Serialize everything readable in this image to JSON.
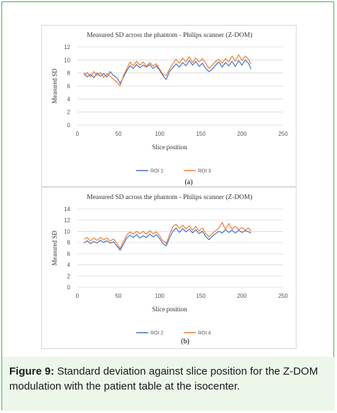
{
  "figure_caption": {
    "label": "Figure 9:",
    "text": " Standard deviation against slice position for the Z-DOM modulation with the patient table at the isocenter."
  },
  "subfigure_labels": [
    "(a)",
    "(b)"
  ],
  "chart_data": [
    {
      "type": "line",
      "title": "Measured SD across the phantom - Philips scanner (Z-DOM)",
      "xlabel": "Slice position",
      "ylabel": "Measured SD",
      "xlim": [
        0,
        250
      ],
      "ylim": [
        0,
        12
      ],
      "xticks": [
        0,
        50,
        100,
        150,
        200,
        250
      ],
      "yticks": [
        0,
        2,
        4,
        6,
        8,
        10,
        12
      ],
      "grid": "horizontal",
      "legend_position": "bottom",
      "series": [
        {
          "name": "ROI 1",
          "color": "#4472c4",
          "points": [
            [
              8,
              8.0
            ],
            [
              12,
              7.4
            ],
            [
              16,
              7.8
            ],
            [
              20,
              7.3
            ],
            [
              24,
              8.0
            ],
            [
              28,
              7.5
            ],
            [
              32,
              7.9
            ],
            [
              36,
              7.4
            ],
            [
              40,
              8.2
            ],
            [
              44,
              7.6
            ],
            [
              48,
              7.3
            ],
            [
              52,
              6.4
            ],
            [
              56,
              7.4
            ],
            [
              60,
              8.3
            ],
            [
              64,
              9.1
            ],
            [
              68,
              8.7
            ],
            [
              72,
              9.3
            ],
            [
              76,
              8.8
            ],
            [
              80,
              9.2
            ],
            [
              84,
              8.9
            ],
            [
              88,
              9.3
            ],
            [
              92,
              8.7
            ],
            [
              96,
              9.1
            ],
            [
              100,
              8.4
            ],
            [
              104,
              7.6
            ],
            [
              108,
              7.0
            ],
            [
              112,
              8.2
            ],
            [
              116,
              8.8
            ],
            [
              120,
              9.4
            ],
            [
              124,
              8.9
            ],
            [
              128,
              9.6
            ],
            [
              132,
              9.1
            ],
            [
              136,
              9.9
            ],
            [
              140,
              9.2
            ],
            [
              144,
              9.8
            ],
            [
              148,
              9.0
            ],
            [
              152,
              9.5
            ],
            [
              156,
              8.7
            ],
            [
              160,
              8.2
            ],
            [
              164,
              8.6
            ],
            [
              168,
              9.2
            ],
            [
              172,
              9.7
            ],
            [
              176,
              8.9
            ],
            [
              180,
              9.6
            ],
            [
              184,
              9.1
            ],
            [
              188,
              9.8
            ],
            [
              192,
              9.0
            ],
            [
              196,
              9.9
            ],
            [
              200,
              9.2
            ],
            [
              204,
              10.0
            ],
            [
              208,
              9.5
            ],
            [
              211,
              8.6
            ]
          ]
        },
        {
          "name": "ROI 3",
          "color": "#ed7d31",
          "points": [
            [
              8,
              7.6
            ],
            [
              12,
              8.1
            ],
            [
              16,
              7.4
            ],
            [
              20,
              8.2
            ],
            [
              24,
              7.6
            ],
            [
              28,
              8.1
            ],
            [
              32,
              7.3
            ],
            [
              36,
              7.9
            ],
            [
              40,
              7.5
            ],
            [
              44,
              7.0
            ],
            [
              48,
              6.6
            ],
            [
              52,
              6.0
            ],
            [
              56,
              7.6
            ],
            [
              60,
              8.6
            ],
            [
              64,
              9.7
            ],
            [
              68,
              9.1
            ],
            [
              72,
              9.8
            ],
            [
              76,
              9.2
            ],
            [
              80,
              9.7
            ],
            [
              84,
              9.0
            ],
            [
              88,
              9.6
            ],
            [
              92,
              9.1
            ],
            [
              96,
              9.4
            ],
            [
              100,
              8.6
            ],
            [
              104,
              7.8
            ],
            [
              108,
              7.6
            ],
            [
              112,
              8.6
            ],
            [
              116,
              9.4
            ],
            [
              120,
              10.1
            ],
            [
              124,
              9.5
            ],
            [
              128,
              10.3
            ],
            [
              132,
              9.7
            ],
            [
              136,
              10.5
            ],
            [
              140,
              9.6
            ],
            [
              144,
              10.3
            ],
            [
              148,
              9.7
            ],
            [
              152,
              10.2
            ],
            [
              156,
              9.5
            ],
            [
              160,
              8.7
            ],
            [
              164,
              9.2
            ],
            [
              168,
              9.8
            ],
            [
              172,
              10.1
            ],
            [
              176,
              9.5
            ],
            [
              180,
              10.2
            ],
            [
              184,
              9.7
            ],
            [
              188,
              10.6
            ],
            [
              192,
              9.8
            ],
            [
              196,
              10.8
            ],
            [
              200,
              9.9
            ],
            [
              204,
              10.6
            ],
            [
              208,
              10.1
            ],
            [
              211,
              9.4
            ]
          ]
        }
      ]
    },
    {
      "type": "line",
      "title": "Measured SD across the phantom - Philips scanner (Z-DOM)",
      "xlabel": "Slice position",
      "ylabel": "Measured SD",
      "xlim": [
        0,
        250
      ],
      "ylim": [
        0,
        14
      ],
      "xticks": [
        0,
        50,
        100,
        150,
        200,
        250
      ],
      "yticks": [
        0,
        2,
        4,
        6,
        8,
        10,
        12,
        14
      ],
      "grid": "horizontal",
      "legend_position": "bottom",
      "series": [
        {
          "name": "ROI 2",
          "color": "#4472c4",
          "points": [
            [
              8,
              7.9
            ],
            [
              12,
              8.3
            ],
            [
              16,
              7.8
            ],
            [
              20,
              8.2
            ],
            [
              24,
              7.9
            ],
            [
              28,
              8.4
            ],
            [
              32,
              8.0
            ],
            [
              36,
              8.3
            ],
            [
              40,
              7.9
            ],
            [
              44,
              8.1
            ],
            [
              48,
              7.4
            ],
            [
              52,
              6.6
            ],
            [
              56,
              7.7
            ],
            [
              60,
              8.8
            ],
            [
              64,
              9.3
            ],
            [
              68,
              8.9
            ],
            [
              72,
              9.4
            ],
            [
              76,
              8.8
            ],
            [
              80,
              9.2
            ],
            [
              84,
              8.9
            ],
            [
              88,
              9.5
            ],
            [
              92,
              9.0
            ],
            [
              96,
              9.4
            ],
            [
              100,
              8.7
            ],
            [
              104,
              7.8
            ],
            [
              108,
              7.4
            ],
            [
              112,
              8.8
            ],
            [
              116,
              10.0
            ],
            [
              120,
              10.6
            ],
            [
              124,
              9.8
            ],
            [
              128,
              10.5
            ],
            [
              132,
              9.9
            ],
            [
              136,
              10.4
            ],
            [
              140,
              9.7
            ],
            [
              144,
              10.3
            ],
            [
              148,
              9.6
            ],
            [
              152,
              10.0
            ],
            [
              156,
              9.1
            ],
            [
              160,
              8.5
            ],
            [
              164,
              9.1
            ],
            [
              168,
              9.6
            ],
            [
              172,
              10.0
            ],
            [
              176,
              9.7
            ],
            [
              180,
              10.3
            ],
            [
              184,
              9.8
            ],
            [
              188,
              10.2
            ],
            [
              192,
              9.7
            ],
            [
              196,
              10.2
            ],
            [
              200,
              9.8
            ],
            [
              204,
              10.1
            ],
            [
              208,
              9.9
            ],
            [
              211,
              9.7
            ]
          ]
        },
        {
          "name": "ROI 4",
          "color": "#ed7d31",
          "points": [
            [
              8,
              8.6
            ],
            [
              12,
              8.9
            ],
            [
              16,
              8.3
            ],
            [
              20,
              8.8
            ],
            [
              24,
              8.4
            ],
            [
              28,
              8.9
            ],
            [
              32,
              8.5
            ],
            [
              36,
              8.8
            ],
            [
              40,
              8.3
            ],
            [
              44,
              8.6
            ],
            [
              48,
              7.9
            ],
            [
              52,
              6.9
            ],
            [
              56,
              8.2
            ],
            [
              60,
              9.3
            ],
            [
              64,
              9.9
            ],
            [
              68,
              9.5
            ],
            [
              72,
              10.0
            ],
            [
              76,
              9.6
            ],
            [
              80,
              10.0
            ],
            [
              84,
              9.5
            ],
            [
              88,
              10.1
            ],
            [
              92,
              9.6
            ],
            [
              96,
              9.9
            ],
            [
              100,
              9.2
            ],
            [
              104,
              8.3
            ],
            [
              108,
              7.8
            ],
            [
              112,
              9.4
            ],
            [
              116,
              10.8
            ],
            [
              120,
              11.3
            ],
            [
              124,
              10.5
            ],
            [
              128,
              11.1
            ],
            [
              132,
              10.4
            ],
            [
              136,
              11.0
            ],
            [
              140,
              10.2
            ],
            [
              144,
              10.9
            ],
            [
              148,
              10.1
            ],
            [
              152,
              10.6
            ],
            [
              156,
              9.6
            ],
            [
              160,
              9.0
            ],
            [
              164,
              9.6
            ],
            [
              168,
              10.1
            ],
            [
              172,
              10.6
            ],
            [
              176,
              11.6
            ],
            [
              180,
              10.3
            ],
            [
              184,
              11.4
            ],
            [
              188,
              10.4
            ],
            [
              192,
              10.9
            ],
            [
              196,
              10.3
            ],
            [
              200,
              10.7
            ],
            [
              204,
              10.2
            ],
            [
              208,
              10.6
            ],
            [
              211,
              10.0
            ]
          ]
        }
      ]
    }
  ]
}
